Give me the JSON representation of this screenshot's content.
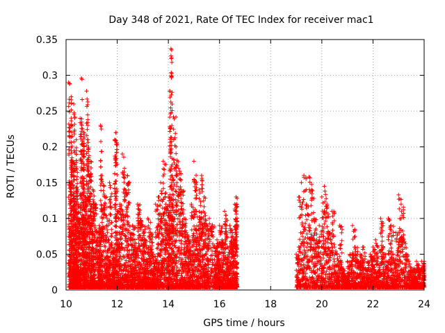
{
  "chart_data": {
    "type": "scatter",
    "title": "Day 348 of 2021, Rate Of TEC Index for receiver mac1",
    "xlabel": "GPS time / hours",
    "ylabel": "ROTI / TECUs",
    "xlim": [
      10,
      24
    ],
    "ylim": [
      0,
      0.35
    ],
    "x_ticks": [
      "10",
      "12",
      "14",
      "16",
      "18",
      "20",
      "22",
      "24"
    ],
    "y_ticks": [
      "0",
      "0.05",
      "0.1",
      "0.15",
      "0.2",
      "0.25",
      "0.3",
      "0.35"
    ],
    "grid": true,
    "marker": "+",
    "color": "#ff0000",
    "series": [
      {
        "x": [
          10.1,
          10.15,
          10.2,
          10.2,
          10.25,
          10.3,
          10.3,
          10.35,
          10.4,
          10.4,
          10.45,
          10.5,
          10.55,
          10.6,
          10.65,
          10.7,
          10.7,
          10.75,
          10.8,
          10.85,
          10.9,
          10.95,
          11.0,
          11.05,
          11.1,
          11.2,
          11.3,
          11.35,
          11.4,
          11.5,
          11.6,
          11.7,
          11.8,
          11.9,
          11.95,
          12.0,
          12.1,
          12.2,
          12.3,
          12.4,
          12.5,
          12.6,
          12.7,
          12.8,
          12.9,
          13.0,
          13.1,
          13.2,
          13.3,
          13.4,
          13.5,
          13.6,
          13.7,
          13.8,
          13.9,
          14.0,
          14.05,
          14.1,
          14.15,
          14.2,
          14.3,
          14.4,
          14.5,
          14.6,
          14.7,
          14.8,
          14.9,
          15.0,
          15.1,
          15.2,
          15.3,
          15.4,
          15.5,
          15.6,
          15.8,
          15.9,
          16.0,
          16.1,
          16.2,
          16.3,
          16.4,
          16.5,
          16.6,
          16.65
        ],
        "y": [
          0.29,
          0.15,
          0.27,
          0.23,
          0.18,
          0.16,
          0.26,
          0.12,
          0.21,
          0.17,
          0.14,
          0.1,
          0.24,
          0.296,
          0.19,
          0.22,
          0.12,
          0.13,
          0.278,
          0.21,
          0.16,
          0.18,
          0.1,
          0.14,
          0.12,
          0.08,
          0.09,
          0.23,
          0.16,
          0.13,
          0.1,
          0.15,
          0.06,
          0.21,
          0.22,
          0.11,
          0.12,
          0.19,
          0.14,
          0.16,
          0.08,
          0.09,
          0.06,
          0.12,
          0.1,
          0.09,
          0.07,
          0.1,
          0.08,
          0.05,
          0.12,
          0.13,
          0.15,
          0.18,
          0.12,
          0.13,
          0.278,
          0.337,
          0.16,
          0.242,
          0.2,
          0.17,
          0.14,
          0.1,
          0.08,
          0.07,
          0.12,
          0.18,
          0.11,
          0.14,
          0.16,
          0.13,
          0.09,
          0.1,
          0.06,
          0.07,
          0.09,
          0.07,
          0.11,
          0.06,
          0.09,
          0.08,
          0.12,
          0.13
        ]
      },
      {
        "x": [
          19.0,
          19.1,
          19.2,
          19.3,
          19.4,
          19.5,
          19.6,
          19.7,
          19.8,
          19.9,
          20.0,
          20.1,
          20.2,
          20.3,
          20.4,
          20.5,
          20.6,
          20.7,
          20.8,
          20.9,
          21.0,
          21.1,
          21.2,
          21.3,
          21.4,
          21.5,
          21.6,
          21.7,
          21.8,
          21.9,
          22.0,
          22.1,
          22.2,
          22.3,
          22.4,
          22.5,
          22.6,
          22.7,
          22.8,
          22.9,
          23.0,
          23.1,
          23.2,
          23.3,
          23.4,
          23.5,
          23.6,
          23.7,
          23.8,
          23.9,
          24.0
        ],
        "y": [
          0.05,
          0.13,
          0.15,
          0.16,
          0.12,
          0.158,
          0.14,
          0.1,
          0.07,
          0.09,
          0.13,
          0.145,
          0.12,
          0.08,
          0.11,
          0.06,
          0.05,
          0.09,
          0.03,
          0.02,
          0.04,
          0.05,
          0.09,
          0.06,
          0.04,
          0.05,
          0.06,
          0.03,
          0.04,
          0.05,
          0.06,
          0.07,
          0.06,
          0.1,
          0.05,
          0.04,
          0.1,
          0.09,
          0.05,
          0.08,
          0.133,
          0.12,
          0.07,
          0.05,
          0.04,
          0.03,
          0.03,
          0.04,
          0.03,
          0.04,
          0.04
        ]
      }
    ]
  }
}
